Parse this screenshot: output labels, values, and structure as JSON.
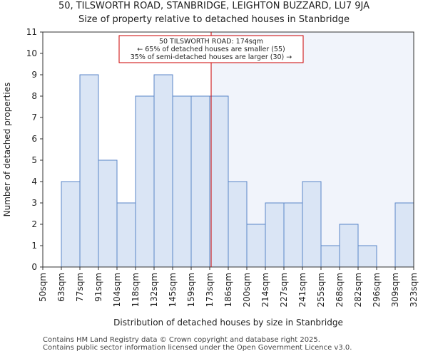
{
  "chart_data": {
    "type": "bar",
    "title": "50, TILSWORTH ROAD, STANBRIDGE, LEIGHTON BUZZARD, LU7 9JA",
    "subtitle": "Size of property relative to detached houses in Stanbridge",
    "xlabel": "Distribution of detached houses by size in Stanbridge",
    "ylabel": "Number of detached properties",
    "bin_edges": [
      50,
      63,
      77,
      91,
      104,
      118,
      132,
      145,
      159,
      173,
      186,
      200,
      214,
      227,
      241,
      255,
      268,
      282,
      296,
      309,
      323
    ],
    "tick_labels": [
      "50sqm",
      "63sqm",
      "77sqm",
      "91sqm",
      "104sqm",
      "118sqm",
      "132sqm",
      "145sqm",
      "159sqm",
      "173sqm",
      "186sqm",
      "200sqm",
      "214sqm",
      "227sqm",
      "241sqm",
      "255sqm",
      "268sqm",
      "282sqm",
      "296sqm",
      "309sqm",
      "323sqm"
    ],
    "values": [
      0,
      4,
      9,
      5,
      3,
      8,
      9,
      8,
      8,
      8,
      4,
      2,
      3,
      3,
      4,
      1,
      2,
      1,
      0,
      3
    ],
    "ylim": [
      0,
      11
    ],
    "yticks": [
      0,
      1,
      2,
      3,
      4,
      5,
      6,
      7,
      8,
      9,
      10,
      11
    ],
    "grid": false,
    "marker_value": 174,
    "annotation": [
      "50 TILSWORTH ROAD: 174sqm",
      "← 65% of detached houses are smaller (55)",
      "35% of semi-detached houses are larger (30) →"
    ],
    "colors": {
      "bar_fill": "#dae5f5",
      "bar_stroke": "#5b86c8",
      "highlight_bg": "#f1f4fb",
      "marker_line": "#cc0000",
      "axis": "#333333"
    }
  },
  "footer": {
    "line1": "Contains HM Land Registry data © Crown copyright and database right 2025.",
    "line2": "Contains public sector information licensed under the Open Government Licence v3.0."
  }
}
